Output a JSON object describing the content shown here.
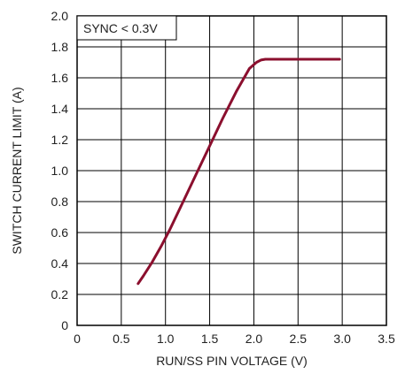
{
  "chart_data": {
    "type": "line",
    "xlabel": "RUN/SS PIN VOLTAGE (V)",
    "ylabel": "SWITCH CURRENT LIMIT (A)",
    "xlim": [
      0,
      3.5
    ],
    "ylim": [
      0,
      2.0
    ],
    "x_ticks": [
      "0",
      "0.5",
      "1.0",
      "1.5",
      "2.0",
      "2.5",
      "3.0",
      "3.5"
    ],
    "y_ticks": [
      "0",
      "0.2",
      "0.4",
      "0.6",
      "0.8",
      "1.0",
      "1.2",
      "1.4",
      "1.6",
      "1.8",
      "2.0"
    ],
    "grid": true,
    "annotation": "SYNC < 0.3V",
    "series": [
      {
        "color": "#8b0f2e",
        "x": [
          0.69,
          0.75,
          0.85,
          0.95,
          1.05,
          1.2,
          1.35,
          1.5,
          1.65,
          1.8,
          1.95,
          2.03,
          2.08,
          2.13,
          2.2,
          2.3,
          2.5,
          2.75,
          2.97
        ],
        "y": [
          0.27,
          0.32,
          0.41,
          0.51,
          0.62,
          0.8,
          0.98,
          1.16,
          1.34,
          1.51,
          1.66,
          1.7,
          1.715,
          1.72,
          1.72,
          1.72,
          1.72,
          1.72,
          1.72
        ]
      }
    ]
  }
}
